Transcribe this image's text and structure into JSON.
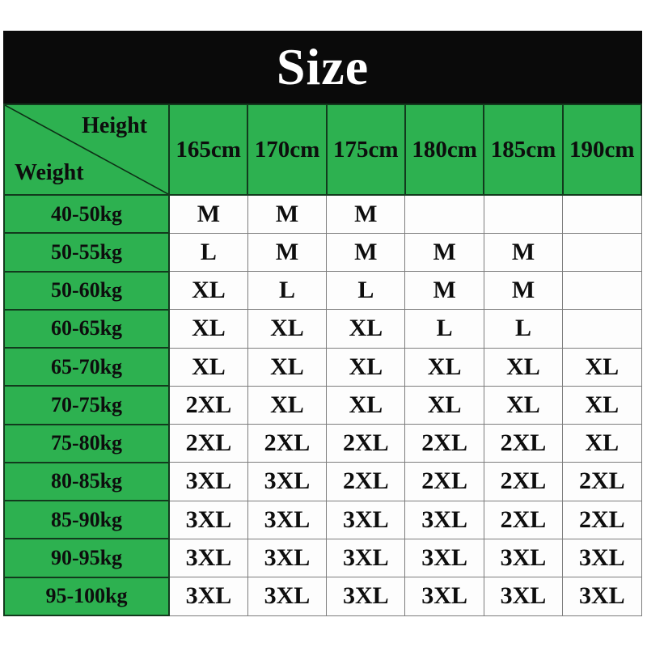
{
  "title": "Size",
  "colors": {
    "green": "#2db150",
    "green_border": "#123a1d",
    "title_bar": "#0a0a0a",
    "title_text": "#ffffff",
    "cell_border": "#7d7d7d",
    "text": "#0d0d0d"
  },
  "table": {
    "corner": {
      "top_label": "Height",
      "bottom_label": "Weight"
    },
    "height_columns": [
      "165cm",
      "170cm",
      "175cm",
      "180cm",
      "185cm",
      "190cm"
    ],
    "rows": [
      {
        "weight": "40-50kg",
        "sizes": [
          "M",
          "M",
          "M",
          "",
          "",
          ""
        ]
      },
      {
        "weight": "50-55kg",
        "sizes": [
          "L",
          "M",
          "M",
          "M",
          "M",
          ""
        ]
      },
      {
        "weight": "50-60kg",
        "sizes": [
          "XL",
          "L",
          "L",
          "M",
          "M",
          ""
        ]
      },
      {
        "weight": "60-65kg",
        "sizes": [
          "XL",
          "XL",
          "XL",
          "L",
          "L",
          ""
        ]
      },
      {
        "weight": "65-70kg",
        "sizes": [
          "XL",
          "XL",
          "XL",
          "XL",
          "XL",
          "XL"
        ]
      },
      {
        "weight": "70-75kg",
        "sizes": [
          "2XL",
          "XL",
          "XL",
          "XL",
          "XL",
          "XL"
        ]
      },
      {
        "weight": "75-80kg",
        "sizes": [
          "2XL",
          "2XL",
          "2XL",
          "2XL",
          "2XL",
          "XL"
        ]
      },
      {
        "weight": "80-85kg",
        "sizes": [
          "3XL",
          "3XL",
          "2XL",
          "2XL",
          "2XL",
          "2XL"
        ]
      },
      {
        "weight": "85-90kg",
        "sizes": [
          "3XL",
          "3XL",
          "3XL",
          "3XL",
          "2XL",
          "2XL"
        ]
      },
      {
        "weight": "90-95kg",
        "sizes": [
          "3XL",
          "3XL",
          "3XL",
          "3XL",
          "3XL",
          "3XL"
        ]
      },
      {
        "weight": "95-100kg",
        "sizes": [
          "3XL",
          "3XL",
          "3XL",
          "3XL",
          "3XL",
          "3XL"
        ]
      }
    ]
  },
  "chart_data": {
    "type": "table",
    "title": "Size",
    "corner_labels": {
      "columns_axis": "Height",
      "rows_axis": "Weight"
    },
    "columns": [
      "165cm",
      "170cm",
      "175cm",
      "180cm",
      "185cm",
      "190cm"
    ],
    "row_labels": [
      "40-50kg",
      "50-55kg",
      "50-60kg",
      "60-65kg",
      "65-70kg",
      "70-75kg",
      "75-80kg",
      "80-85kg",
      "85-90kg",
      "90-95kg",
      "95-100kg"
    ],
    "cells": [
      [
        "M",
        "M",
        "M",
        "",
        "",
        ""
      ],
      [
        "L",
        "M",
        "M",
        "M",
        "M",
        ""
      ],
      [
        "XL",
        "L",
        "L",
        "M",
        "M",
        ""
      ],
      [
        "XL",
        "XL",
        "XL",
        "L",
        "L",
        ""
      ],
      [
        "XL",
        "XL",
        "XL",
        "XL",
        "XL",
        "XL"
      ],
      [
        "2XL",
        "XL",
        "XL",
        "XL",
        "XL",
        "XL"
      ],
      [
        "2XL",
        "2XL",
        "2XL",
        "2XL",
        "2XL",
        "XL"
      ],
      [
        "3XL",
        "3XL",
        "2XL",
        "2XL",
        "2XL",
        "2XL"
      ],
      [
        "3XL",
        "3XL",
        "3XL",
        "3XL",
        "2XL",
        "2XL"
      ],
      [
        "3XL",
        "3XL",
        "3XL",
        "3XL",
        "3XL",
        "3XL"
      ],
      [
        "3XL",
        "3XL",
        "3XL",
        "3XL",
        "3XL",
        "3XL"
      ]
    ]
  }
}
